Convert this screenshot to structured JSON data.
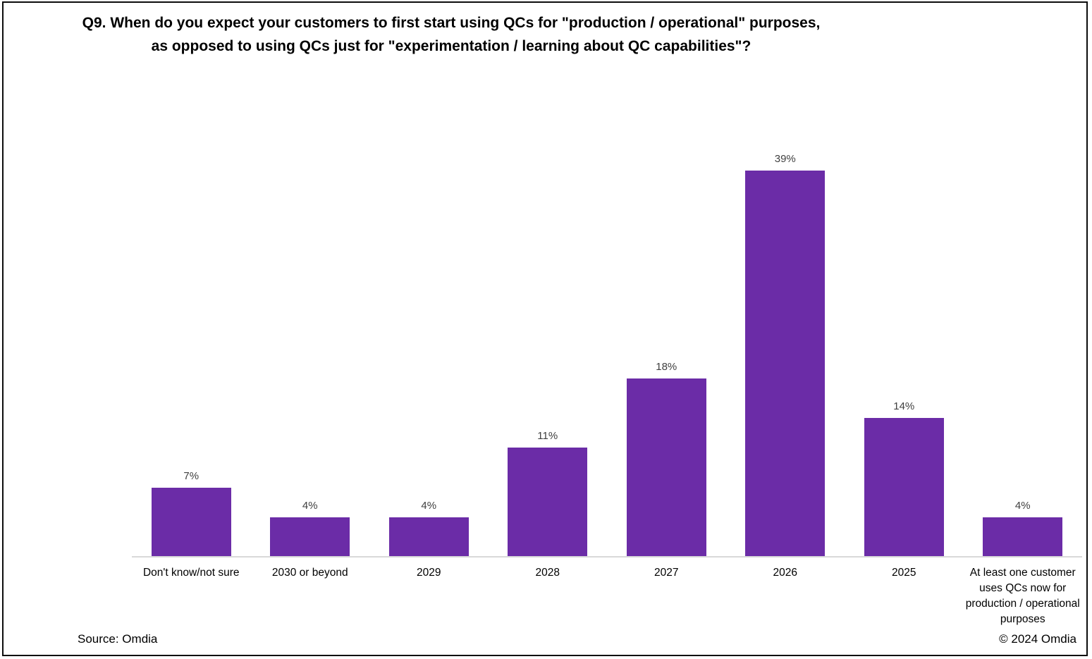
{
  "title": {
    "line1": "Q9. When do you expect your customers to first start using QCs for \"production / operational\" purposes,",
    "line2": "as opposed to using QCs just for \"experimentation / learning about QC capabilities\"?"
  },
  "footer": {
    "source": "Source: Omdia",
    "copyright": "© 2024 Omdia"
  },
  "chart_data": {
    "type": "bar",
    "title": "Q9. When do you expect your customers to first start using QCs for \"production / operational\" purposes, as opposed to using QCs just for \"experimentation / learning about QC capabilities\"?",
    "categories": [
      "Don't know/not sure",
      "2030 or beyond",
      "2029",
      "2028",
      "2027",
      "2026",
      "2025",
      "At least one customer uses QCs now for production / operational purposes"
    ],
    "values": [
      7,
      4,
      4,
      11,
      18,
      39,
      14,
      4
    ],
    "value_labels": [
      "7%",
      "4%",
      "4%",
      "11%",
      "18%",
      "39%",
      "14%",
      "4%"
    ],
    "xlabel": "",
    "ylabel": "",
    "ylim": [
      0,
      40
    ],
    "grid": false,
    "legend": "none",
    "data_labels_position": "above bars",
    "bar_color": "#6b2ca7",
    "value_label_color": "#404040",
    "category_label_color": "#000000",
    "axis_line_color": "#d9d9d9"
  }
}
